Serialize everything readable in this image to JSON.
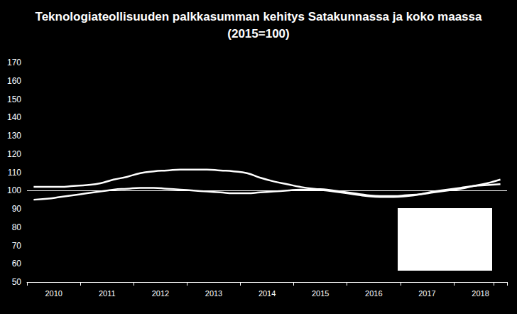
{
  "chart_data": {
    "type": "line",
    "title": "Teknologiateollisuuden palkkasumman kehitys Satakunnassa ja koko maassa\n(2015=100)",
    "categories": [
      null,
      "2010",
      null,
      null,
      null,
      "2011",
      null,
      null,
      null,
      "2012",
      null,
      null,
      null,
      "2013",
      null,
      null,
      null,
      "2014",
      null,
      null,
      null,
      "2015",
      null,
      null,
      null,
      "2016",
      null,
      null,
      null,
      "2017",
      null,
      null,
      null,
      "2018",
      null,
      null
    ],
    "series": [
      {
        "color": "#ffffff",
        "values": [
          102,
          102,
          102,
          102.5,
          103,
          104,
          106,
          107.5,
          109.5,
          110.5,
          111,
          111.5,
          111.5,
          111.5,
          111,
          110.5,
          109.5,
          107,
          105,
          103.5,
          102,
          101,
          100.5,
          99.5,
          98.5,
          97.5,
          97,
          97,
          97.5,
          98,
          99,
          100,
          101,
          102.5,
          104,
          106
        ]
      },
      {
        "color": "#ffffff",
        "values": [
          95,
          95.5,
          96.5,
          97.5,
          98.5,
          99.5,
          100.5,
          101,
          101.5,
          101.5,
          101,
          100.5,
          100,
          99.5,
          99,
          98.5,
          98.5,
          99,
          99.5,
          100,
          100.5,
          100.5,
          100,
          99,
          98,
          97,
          96.5,
          96.5,
          97,
          98,
          99.5,
          100.5,
          101.5,
          102.5,
          103,
          103.5
        ]
      }
    ],
    "reference_line": 100,
    "ylim": [
      50,
      170
    ],
    "yticks": [
      50,
      60,
      70,
      80,
      90,
      100,
      110,
      120,
      130,
      140,
      150,
      160,
      170
    ],
    "grid": false
  }
}
